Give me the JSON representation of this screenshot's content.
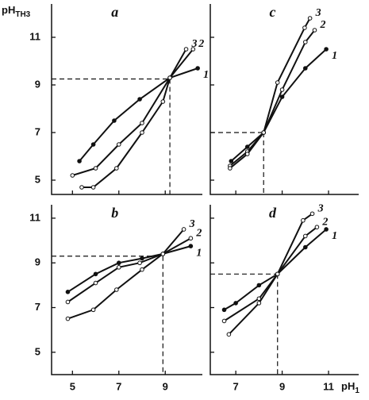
{
  "chart_data": [
    {
      "type": "line",
      "title": "a",
      "y_label": {
        "main": "pH",
        "sub": "TH3"
      },
      "xlim": [
        4.1,
        10.6
      ],
      "ylim": [
        4.4,
        12.4
      ],
      "xticks": [
        5,
        7,
        9
      ],
      "yticks": [
        5,
        7,
        9,
        11
      ],
      "x_tick_labels": false,
      "y_tick_labels": true,
      "color": "#111111",
      "guide": {
        "x": 9.2,
        "y": 9.25
      },
      "series": [
        {
          "name": "1",
          "x": [
            5.3,
            5.9,
            6.8,
            7.9,
            9.2,
            10.4
          ],
          "values": [
            5.8,
            6.5,
            7.5,
            8.4,
            9.3,
            9.7
          ]
        },
        {
          "name": "2",
          "x": [
            5.0,
            6.0,
            7.0,
            8.0,
            9.2,
            10.2
          ],
          "values": [
            5.2,
            5.5,
            6.5,
            7.4,
            9.3,
            10.5
          ]
        },
        {
          "name": "3",
          "x": [
            5.4,
            5.9,
            6.9,
            8.0,
            8.9,
            9.2,
            9.9
          ],
          "values": [
            4.7,
            4.7,
            5.5,
            7.0,
            8.3,
            9.3,
            10.5
          ]
        }
      ]
    },
    {
      "type": "line",
      "title": "c",
      "xlim": [
        5.9,
        12.3
      ],
      "ylim": [
        4.4,
        12.4
      ],
      "xticks": [
        7,
        9,
        11
      ],
      "yticks": [
        5,
        7,
        9,
        11
      ],
      "x_tick_labels": false,
      "y_tick_labels": false,
      "color": "#111111",
      "guide": {
        "x": 8.2,
        "y": 7.0
      },
      "series": [
        {
          "name": "1",
          "x": [
            6.8,
            7.5,
            8.2,
            9.0,
            10.0,
            10.9
          ],
          "values": [
            5.8,
            6.4,
            7.0,
            8.5,
            9.7,
            10.5
          ]
        },
        {
          "name": "2",
          "x": [
            6.75,
            7.5,
            8.2,
            9.0,
            10.0,
            10.4
          ],
          "values": [
            5.6,
            6.2,
            7.0,
            8.8,
            10.8,
            11.3
          ]
        },
        {
          "name": "3",
          "x": [
            6.75,
            7.5,
            8.2,
            8.8,
            9.97,
            10.2
          ],
          "values": [
            5.5,
            6.1,
            7.0,
            9.1,
            11.4,
            11.8
          ]
        }
      ]
    },
    {
      "type": "line",
      "title": "b",
      "x_label": {
        "main": "pH",
        "sub": "1"
      },
      "xlim": [
        4.1,
        10.6
      ],
      "ylim": [
        4.0,
        11.6
      ],
      "xticks": [
        5,
        7,
        9
      ],
      "yticks": [
        5,
        7,
        9,
        11
      ],
      "x_tick_labels": true,
      "y_tick_labels": true,
      "color": "#111111",
      "guide": {
        "x": 8.9,
        "y": 9.3
      },
      "series": [
        {
          "name": "1",
          "x": [
            4.8,
            6.0,
            7.0,
            8.0,
            8.9,
            10.1
          ],
          "values": [
            7.7,
            8.5,
            9.0,
            9.2,
            9.4,
            9.75
          ]
        },
        {
          "name": "2",
          "x": [
            4.8,
            6.0,
            7.0,
            7.9,
            8.9,
            10.1
          ],
          "values": [
            7.25,
            8.1,
            8.8,
            9.0,
            9.4,
            10.1
          ]
        },
        {
          "name": "3",
          "x": [
            4.8,
            5.9,
            6.9,
            8.0,
            8.9,
            9.8
          ],
          "values": [
            6.5,
            6.9,
            7.8,
            8.7,
            9.4,
            10.5
          ]
        }
      ]
    },
    {
      "type": "line",
      "title": "d",
      "xlim": [
        5.9,
        12.3
      ],
      "ylim": [
        4.0,
        11.6
      ],
      "xticks": [
        7,
        9,
        11
      ],
      "yticks": [
        5,
        7,
        9,
        11
      ],
      "x_tick_labels": true,
      "y_tick_labels": false,
      "color": "#111111",
      "guide": {
        "x": 8.8,
        "y": 8.5
      },
      "series": [
        {
          "name": "1",
          "x": [
            6.5,
            7.0,
            8.0,
            8.8,
            10.0,
            10.9
          ],
          "values": [
            6.9,
            7.2,
            8.0,
            8.5,
            9.7,
            10.5
          ]
        },
        {
          "name": "2",
          "x": [
            6.5,
            8.0,
            8.8,
            10.0,
            10.5
          ],
          "values": [
            6.4,
            7.4,
            8.5,
            10.2,
            10.6
          ]
        },
        {
          "name": "3",
          "x": [
            6.7,
            8.0,
            8.8,
            9.9,
            10.3
          ],
          "values": [
            5.8,
            7.2,
            8.5,
            10.9,
            11.2
          ]
        }
      ]
    }
  ]
}
